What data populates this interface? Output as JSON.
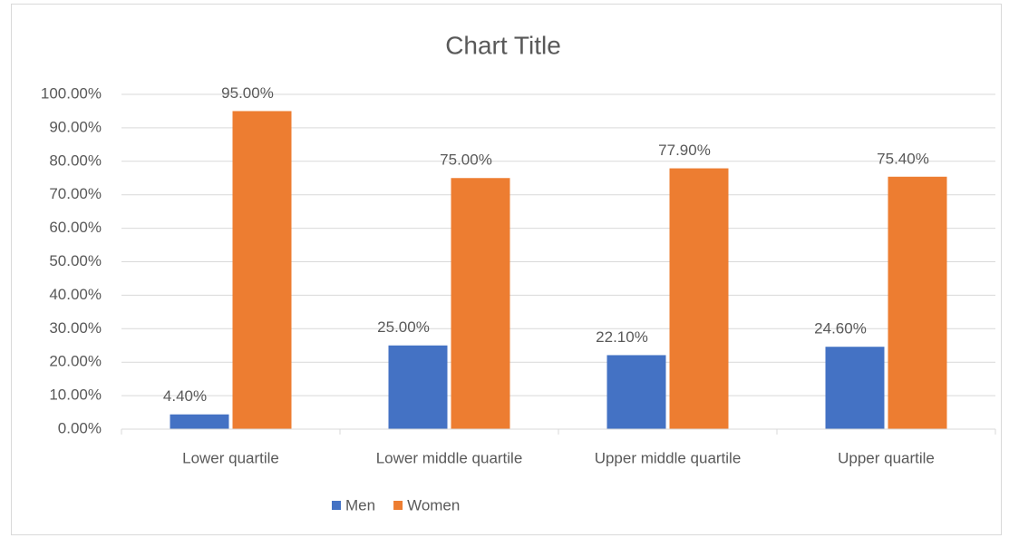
{
  "chart_data": {
    "type": "bar",
    "title": "Chart Title",
    "categories": [
      "Lower quartile",
      "Lower middle quartile",
      "Upper middle quartile",
      "Upper quartile"
    ],
    "series": [
      {
        "name": "Men",
        "color": "#4472c4",
        "values": [
          4.4,
          25,
          22.1,
          24.6
        ],
        "value_labels": [
          "4.40%",
          "25.00%",
          "22.10%",
          "24.60%"
        ]
      },
      {
        "name": "Women",
        "color": "#ed7d31",
        "values": [
          95,
          75,
          77.9,
          75.4
        ],
        "value_labels": [
          "95.00%",
          "75.00%",
          "77.90%",
          "75.40%"
        ]
      }
    ],
    "ylim": [
      0,
      100
    ],
    "yticks": [
      {
        "value": 0,
        "label": "0.00%"
      },
      {
        "value": 10,
        "label": "10.00%"
      },
      {
        "value": 20,
        "label": "20.00%"
      },
      {
        "value": 30,
        "label": "30.00%"
      },
      {
        "value": 40,
        "label": "40.00%"
      },
      {
        "value": 50,
        "label": "50.00%"
      },
      {
        "value": 60,
        "label": "60.00%"
      },
      {
        "value": 70,
        "label": "70.00%"
      },
      {
        "value": 80,
        "label": "80.00%"
      },
      {
        "value": 90,
        "label": "90.00%"
      },
      {
        "value": 100,
        "label": "100.00%"
      }
    ],
    "grid": true,
    "legend": "bottom"
  }
}
